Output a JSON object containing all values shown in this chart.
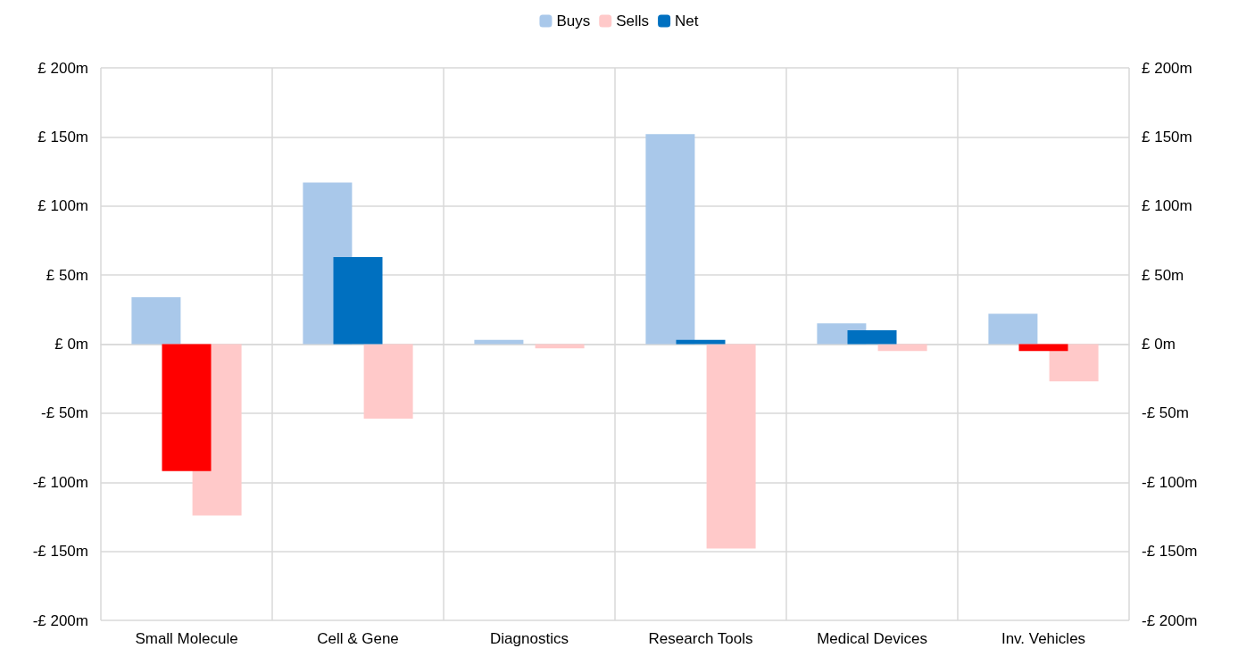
{
  "chart_data": {
    "type": "bar",
    "categories": [
      "Small Molecule",
      "Cell & Gene",
      "Diagnostics",
      "Research Tools",
      "Medical Devices",
      "Inv. Vehicles"
    ],
    "series": [
      {
        "name": "Buys",
        "color": "#a9c8ea",
        "values": [
          34,
          117,
          3,
          152,
          15,
          22
        ]
      },
      {
        "name": "Sells",
        "color": "#ffc9c9",
        "values": [
          -124,
          -54,
          -3,
          -148,
          -5,
          -27
        ]
      },
      {
        "name": "Net",
        "color": "#0070c0",
        "colors": [
          "#ff0000",
          "#0070c0",
          "#0070c0",
          "#0070c0",
          "#0070c0",
          "#ff0000"
        ],
        "values": [
          -92,
          63,
          0,
          3,
          10,
          -5
        ]
      }
    ],
    "ylim": [
      -200,
      200
    ],
    "yticks": [
      {
        "value": -200,
        "label": "-£ 200m"
      },
      {
        "value": -150,
        "label": "-£ 150m"
      },
      {
        "value": -100,
        "label": "-£ 100m"
      },
      {
        "value": -50,
        "label": "-£ 50m"
      },
      {
        "value": 0,
        "label": "£ 0m"
      },
      {
        "value": 50,
        "label": "£ 50m"
      },
      {
        "value": 100,
        "label": "£ 100m"
      },
      {
        "value": 150,
        "label": "£ 150m"
      },
      {
        "value": 200,
        "label": "£ 200m"
      }
    ],
    "y2lim": [
      -200,
      200
    ],
    "y2ticks": [
      {
        "value": -200,
        "label": "-£ 200m"
      },
      {
        "value": -150,
        "label": "-£ 150m"
      },
      {
        "value": -100,
        "label": "-£ 100m"
      },
      {
        "value": -50,
        "label": "-£ 50m"
      },
      {
        "value": 0,
        "label": "£ 0m"
      },
      {
        "value": 50,
        "label": "£ 50m"
      },
      {
        "value": 100,
        "label": "£ 100m"
      },
      {
        "value": 150,
        "label": "£ 150m"
      },
      {
        "value": 200,
        "label": "£ 200m"
      }
    ],
    "grid": true,
    "legend": "top"
  }
}
